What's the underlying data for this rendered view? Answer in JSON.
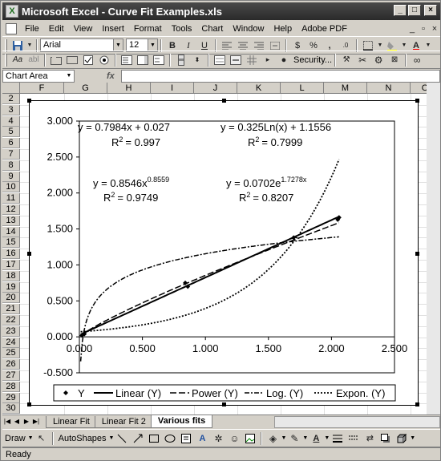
{
  "window": {
    "title": "Microsoft Excel - Curve Fit Examples.xls",
    "min_glyph": "_",
    "max_glyph": "□",
    "close_glyph": "×",
    "doc_min_glyph": "_",
    "doc_restore_glyph": "▫",
    "doc_close_glyph": "×"
  },
  "menu": [
    "File",
    "Edit",
    "View",
    "Insert",
    "Format",
    "Tools",
    "Chart",
    "Window",
    "Help",
    "Adobe PDF"
  ],
  "formatting_toolbar": {
    "font": "Arial",
    "size": "12",
    "bold": "B",
    "italic": "I",
    "underline": "U",
    "currency": "$",
    "percent": "%",
    "comma": ",",
    "font_color_glyph": "A"
  },
  "chart_toolbar": {
    "security_label": "Security...",
    "abc_label": "abl",
    "aa_label": "Aa"
  },
  "formula_bar": {
    "name_box": "Chart Area",
    "fx_label": "fx",
    "content": ""
  },
  "columns": [
    "F",
    "G",
    "H",
    "I",
    "J",
    "K",
    "L",
    "M",
    "N",
    "O"
  ],
  "rows": [
    "2",
    "3",
    "4",
    "5",
    "6",
    "7",
    "8",
    "9",
    "10",
    "11",
    "12",
    "13",
    "14",
    "15",
    "16",
    "17",
    "18",
    "19",
    "20",
    "21",
    "22",
    "23",
    "24",
    "25",
    "26",
    "27",
    "28",
    "29",
    "30"
  ],
  "sheet_tabs": {
    "tabs": [
      "Linear Fit",
      "Linear Fit 2",
      "Various fits"
    ],
    "active": "Various fits"
  },
  "draw_toolbar": {
    "draw_label": "Draw",
    "autoshapes_label": "AutoShapes"
  },
  "status": {
    "text": "Ready"
  },
  "chart_data": {
    "type": "scatter",
    "xlim": [
      0,
      2.5
    ],
    "ylim": [
      -0.5,
      3.0
    ],
    "x_ticks": [
      "0.000",
      "0.500",
      "1.000",
      "1.500",
      "2.000",
      "2.500"
    ],
    "y_ticks": [
      "3.000",
      "2.500",
      "2.000",
      "1.500",
      "1.000",
      "0.500",
      "0.000",
      "-0.500"
    ],
    "grid": false,
    "legend_placement": "bottom",
    "points": [
      {
        "x": 0.02,
        "y": 0.02
      },
      {
        "x": 0.04,
        "y": 0.04
      },
      {
        "x": 0.84,
        "y": 0.75
      },
      {
        "x": 0.86,
        "y": 0.7
      },
      {
        "x": 1.7,
        "y": 1.38
      },
      {
        "x": 2.05,
        "y": 1.63
      },
      {
        "x": 2.06,
        "y": 1.66
      }
    ],
    "series": [
      {
        "name": "Y",
        "style": "markers"
      },
      {
        "name": "Linear (Y)",
        "style": "solid",
        "a": 0.7984,
        "b": 0.027
      },
      {
        "name": "Power (Y)",
        "style": "longdash",
        "a": 0.8546,
        "b": 0.8559
      },
      {
        "name": "Log. (Y)",
        "style": "dashdot",
        "a": 0.325,
        "b": 1.1556
      },
      {
        "name": "Expon. (Y)",
        "style": "dotted",
        "a": 0.0702,
        "b": 1.7278
      }
    ],
    "annotations": {
      "linear_eq": "y = 0.7984x + 0.027",
      "linear_r2": "= 0.997",
      "log_eq": "y = 0.325Ln(x) + 1.1556",
      "log_r2": "= 0.7999",
      "power_eq": "y = 0.8546x",
      "power_exp": "0.8559",
      "power_r2": "= 0.9749",
      "exp_eq": "y = 0.0702e",
      "exp_exp": "1.7278x",
      "exp_r2": "= 0.8207",
      "r2_prefix": "R",
      "r2_sup": "2"
    }
  }
}
